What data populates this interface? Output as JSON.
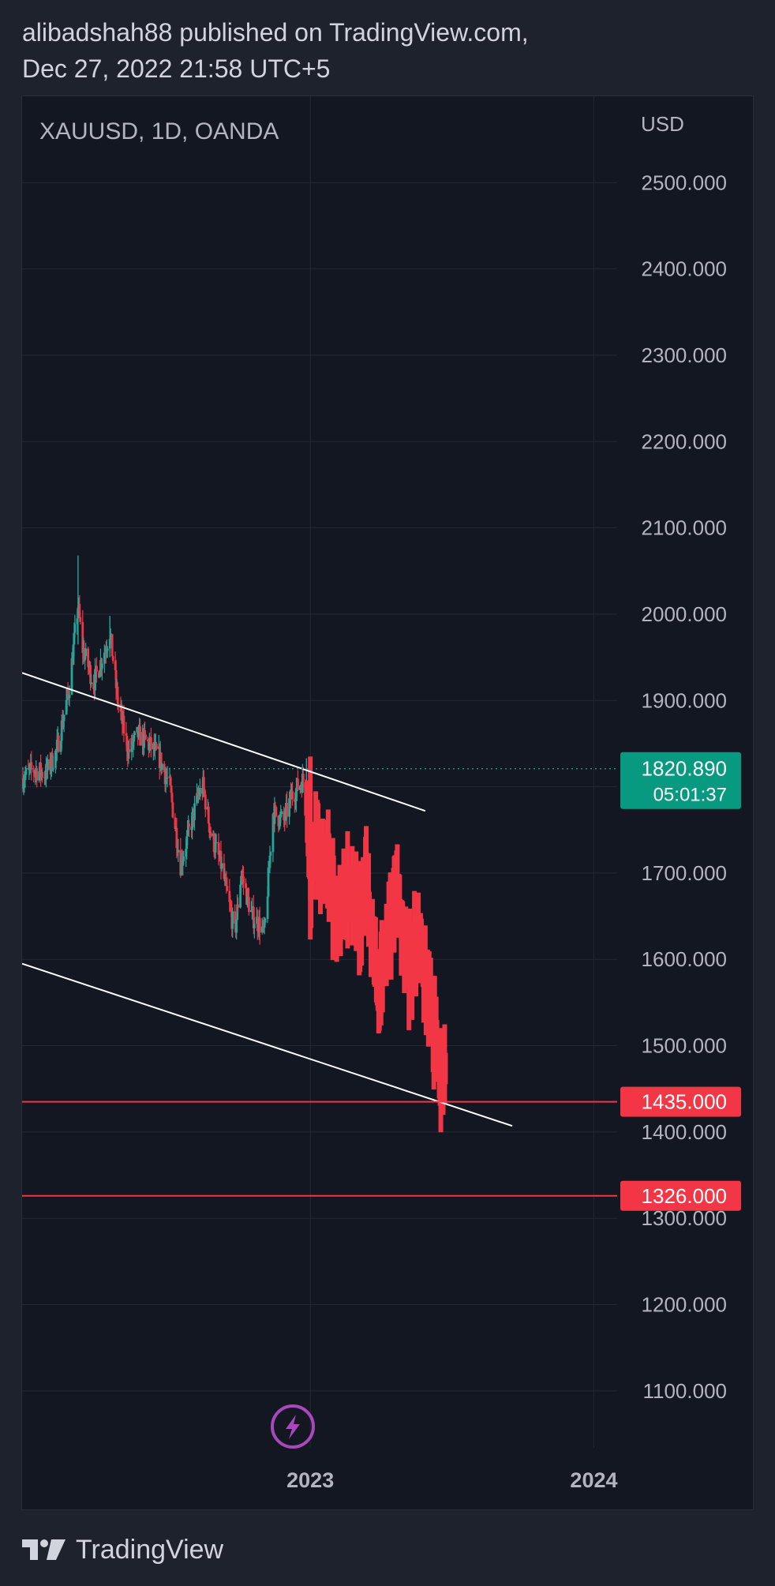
{
  "header": {
    "line1": "alibadshah88 published on TradingView.com,",
    "line2": "Dec 27, 2022 21:58 UTC+5"
  },
  "footer": {
    "brand": "TradingView"
  },
  "colors": {
    "up": "#26a69a",
    "down": "#f23645",
    "bg": "#131722",
    "grid": "#242836",
    "text": "#b2b5be",
    "trendline": "#ffffff",
    "last_price_bg": "#089981",
    "level_line": "#f23645",
    "brand_icon": "#ab47bc"
  },
  "icons": {
    "flash": "lightning-bolt-icon",
    "logo": "tradingview-logo-icon"
  },
  "chart_data": {
    "type": "candlestick",
    "symbol_label": "XAUUSD, 1D, OANDA",
    "currency": "USD",
    "y_ticks": [
      2500,
      2400,
      2300,
      2200,
      2100,
      2000,
      1900,
      1800,
      1700,
      1600,
      1500,
      1400,
      1300,
      1200,
      1100
    ],
    "y_tick_labels": [
      "2500.000",
      "2400.000",
      "2300.000",
      "2200.000",
      "2100.000",
      "2000.000",
      "1900.000",
      "1800.000",
      "1700.000",
      "1600.000",
      "1500.000",
      "1400.000",
      "1300.000",
      "1200.000",
      "1100.000"
    ],
    "ylim": [
      1034,
      2600
    ],
    "x_ticks": [
      "2023",
      "2024"
    ],
    "x_range": [
      "2021-12-26",
      "2024-01-31"
    ],
    "last_price": {
      "value": 1820.89,
      "label": "1820.890",
      "countdown": "05:01:37"
    },
    "horizontal_levels": [
      {
        "value": 1435,
        "label": "1435.000"
      },
      {
        "value": 1326,
        "label": "1326.000"
      }
    ],
    "trendlines": [
      {
        "from": [
          "2021-12-26",
          1932
        ],
        "to": [
          "2023-05-29",
          1772
        ]
      },
      {
        "from": [
          "2021-12-26",
          1595
        ],
        "to": [
          "2023-09-18",
          1407
        ]
      }
    ],
    "historical_candles": {
      "series": "XAUUSD daily (historical, green/red)",
      "close_path": [
        [
          "2021-12-26",
          1810
        ],
        [
          "2022-01-10",
          1820
        ],
        [
          "2022-01-25",
          1815
        ],
        [
          "2022-02-08",
          1840
        ],
        [
          "2022-02-24",
          1910
        ],
        [
          "2022-03-08",
          2010
        ],
        [
          "2022-03-14",
          1960
        ],
        [
          "2022-03-28",
          1920
        ],
        [
          "2022-04-12",
          1960
        ],
        [
          "2022-04-18",
          1980
        ],
        [
          "2022-04-28",
          1900
        ],
        [
          "2022-05-12",
          1840
        ],
        [
          "2022-05-24",
          1860
        ],
        [
          "2022-06-06",
          1850
        ],
        [
          "2022-06-20",
          1835
        ],
        [
          "2022-07-04",
          1800
        ],
        [
          "2022-07-18",
          1710
        ],
        [
          "2022-07-28",
          1745
        ],
        [
          "2022-08-10",
          1790
        ],
        [
          "2022-08-16",
          1800
        ],
        [
          "2022-08-26",
          1745
        ],
        [
          "2022-09-08",
          1710
        ],
        [
          "2022-09-26",
          1630
        ],
        [
          "2022-10-04",
          1700
        ],
        [
          "2022-10-18",
          1650
        ],
        [
          "2022-10-28",
          1640
        ],
        [
          "2022-11-03",
          1630
        ],
        [
          "2022-11-14",
          1770
        ],
        [
          "2022-11-28",
          1760
        ],
        [
          "2022-12-08",
          1790
        ],
        [
          "2022-12-26",
          1812
        ]
      ]
    },
    "projected_path": {
      "series": "Projected path (red bars)",
      "points": [
        [
          "2022-12-27",
          1790
        ],
        [
          "2023-01-01",
          1690
        ],
        [
          "2023-01-08",
          1740
        ],
        [
          "2023-01-15",
          1700
        ],
        [
          "2023-01-24",
          1720
        ],
        [
          "2023-02-01",
          1650
        ],
        [
          "2023-02-10",
          1670
        ],
        [
          "2023-02-20",
          1680
        ],
        [
          "2023-03-01",
          1660
        ],
        [
          "2023-03-08",
          1640
        ],
        [
          "2023-03-14",
          1700
        ],
        [
          "2023-03-22",
          1620
        ],
        [
          "2023-03-30",
          1560
        ],
        [
          "2023-04-05",
          1600
        ],
        [
          "2023-04-15",
          1650
        ],
        [
          "2023-04-22",
          1700
        ],
        [
          "2023-04-28",
          1640
        ],
        [
          "2023-05-08",
          1590
        ],
        [
          "2023-05-20",
          1620
        ],
        [
          "2023-05-28",
          1590
        ],
        [
          "2023-06-06",
          1540
        ],
        [
          "2023-06-14",
          1480
        ],
        [
          "2023-06-20",
          1460
        ],
        [
          "2023-06-24",
          1470
        ]
      ]
    }
  }
}
